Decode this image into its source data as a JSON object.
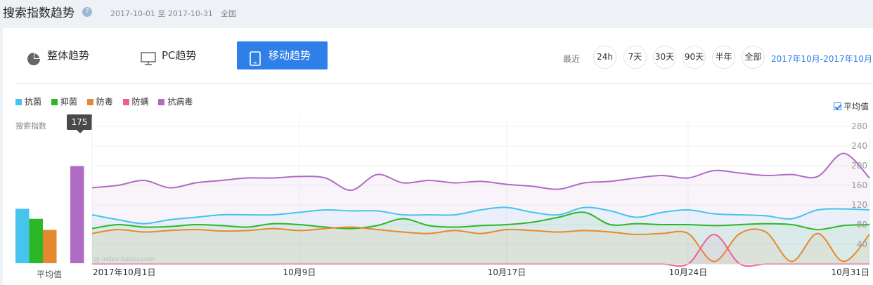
{
  "header": {
    "title": "搜索指数趋势",
    "help_icon": "?",
    "date_range": "2017-10-01 至 2017-10-31",
    "region": "全国"
  },
  "tabs": [
    {
      "label": "整体趋势",
      "icon": "pie-chart-icon"
    },
    {
      "label": "PC趋势",
      "icon": "monitor-icon"
    },
    {
      "label": "移动趋势",
      "icon": "tablet-icon",
      "active": true
    }
  ],
  "range": {
    "label": "最近",
    "buttons": [
      "24h",
      "7天",
      "30天",
      "90天",
      "半年",
      "全部"
    ],
    "current_period": "2017年10月-2017年10月"
  },
  "avg_toggle": {
    "label": "平均值",
    "checked": true
  },
  "avg_bar_label": "平均值",
  "y_title": "搜索指数",
  "tooltip": "175",
  "watermark": "@ index.baidu.com",
  "colors": {
    "antibacterial": "#45c4ec",
    "bacteriostatic": "#2cb826",
    "antivirus_poison": "#e5892e",
    "anti_mite": "#ec5f9b",
    "antivirus": "#b06cc4"
  },
  "chart_data": [
    {
      "type": "bar",
      "title": "平均值",
      "categories": [
        "抗菌",
        "抑菌",
        "防毒",
        "防螨",
        "抗病毒"
      ],
      "values": [
        98,
        80,
        60,
        0,
        175
      ],
      "ylim": [
        0,
        280
      ]
    },
    {
      "type": "area",
      "ylabel": "搜索指数",
      "ylim": [
        0,
        300
      ],
      "yticks": [
        40,
        80,
        120,
        160,
        200,
        240,
        280
      ],
      "xticks": [
        "2017年10月1日",
        "10月9日",
        "10月17日",
        "10月24日",
        "10月31日"
      ],
      "x": [
        "10-01",
        "10-02",
        "10-03",
        "10-04",
        "10-05",
        "10-06",
        "10-07",
        "10-08",
        "10-09",
        "10-10",
        "10-11",
        "10-12",
        "10-13",
        "10-14",
        "10-15",
        "10-16",
        "10-17",
        "10-18",
        "10-19",
        "10-20",
        "10-21",
        "10-22",
        "10-23",
        "10-24",
        "10-25",
        "10-26",
        "10-27",
        "10-28",
        "10-29",
        "10-30",
        "10-31"
      ],
      "series": [
        {
          "name": "抗菌",
          "values": [
            100,
            90,
            82,
            90,
            95,
            100,
            100,
            100,
            105,
            110,
            108,
            108,
            100,
            100,
            100,
            110,
            115,
            105,
            100,
            115,
            108,
            95,
            105,
            110,
            102,
            100,
            98,
            92,
            110,
            112,
            110
          ]
        },
        {
          "name": "抑菌",
          "values": [
            72,
            80,
            75,
            76,
            80,
            78,
            75,
            82,
            80,
            75,
            72,
            78,
            92,
            78,
            75,
            78,
            80,
            85,
            95,
            105,
            80,
            82,
            80,
            80,
            78,
            80,
            82,
            80,
            70,
            78,
            80
          ]
        },
        {
          "name": "防毒",
          "values": [
            62,
            70,
            65,
            68,
            70,
            67,
            68,
            72,
            68,
            72,
            75,
            70,
            65,
            62,
            68,
            62,
            70,
            68,
            65,
            68,
            65,
            60,
            62,
            62,
            5,
            62,
            65,
            5,
            62,
            5,
            60
          ]
        },
        {
          "name": "防螨",
          "values": [
            0,
            0,
            0,
            0,
            0,
            0,
            0,
            0,
            0,
            0,
            0,
            0,
            0,
            0,
            0,
            0,
            0,
            0,
            0,
            0,
            0,
            0,
            0,
            0,
            60,
            0,
            0,
            0,
            0,
            0,
            0
          ]
        },
        {
          "name": "抗病毒",
          "values": [
            155,
            160,
            170,
            155,
            165,
            170,
            175,
            175,
            178,
            175,
            150,
            182,
            165,
            170,
            165,
            168,
            162,
            158,
            152,
            165,
            168,
            175,
            180,
            175,
            190,
            185,
            180,
            182,
            178,
            225,
            175
          ]
        }
      ]
    }
  ]
}
